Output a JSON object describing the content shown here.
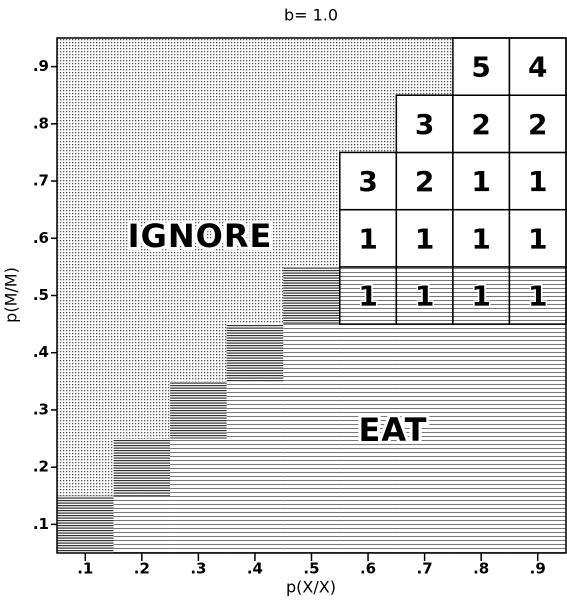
{
  "chart_data": {
    "type": "grid",
    "title": "b= 1.0",
    "xlabel": "p(X/X)",
    "ylabel": "p(M/M)",
    "xlim": [
      0.05,
      0.95
    ],
    "ylim": [
      0.05,
      0.95
    ],
    "xticks": [
      {
        "value": 0.1,
        "label": ".1"
      },
      {
        "value": 0.2,
        "label": ".2"
      },
      {
        "value": 0.3,
        "label": ".3"
      },
      {
        "value": 0.4,
        "label": ".4"
      },
      {
        "value": 0.5,
        "label": ".5"
      },
      {
        "value": 0.6,
        "label": ".6"
      },
      {
        "value": 0.7,
        "label": ".7"
      },
      {
        "value": 0.8,
        "label": ".8"
      },
      {
        "value": 0.9,
        "label": ".9"
      }
    ],
    "yticks": [
      {
        "value": 0.1,
        "label": ".1"
      },
      {
        "value": 0.2,
        "label": ".2"
      },
      {
        "value": 0.3,
        "label": ".3"
      },
      {
        "value": 0.4,
        "label": ".4"
      },
      {
        "value": 0.5,
        "label": ".5"
      },
      {
        "value": 0.6,
        "label": ".6"
      },
      {
        "value": 0.7,
        "label": ".7"
      },
      {
        "value": 0.8,
        "label": ".8"
      },
      {
        "value": 0.9,
        "label": ".9"
      }
    ],
    "regions": [
      "IGNORE",
      "EAT"
    ],
    "transition_cells": [
      {
        "x": 0.1,
        "y": 0.1
      },
      {
        "x": 0.2,
        "y": 0.2
      },
      {
        "x": 0.3,
        "y": 0.3
      },
      {
        "x": 0.4,
        "y": 0.4
      },
      {
        "x": 0.5,
        "y": 0.5
      }
    ],
    "cells": [
      {
        "x": 0.6,
        "y": 0.5,
        "value": 1,
        "hatched": true
      },
      {
        "x": 0.6,
        "y": 0.6,
        "value": 1
      },
      {
        "x": 0.6,
        "y": 0.7,
        "value": 3
      },
      {
        "x": 0.7,
        "y": 0.5,
        "value": 1,
        "hatched": true
      },
      {
        "x": 0.7,
        "y": 0.6,
        "value": 1
      },
      {
        "x": 0.7,
        "y": 0.7,
        "value": 2
      },
      {
        "x": 0.7,
        "y": 0.8,
        "value": 3
      },
      {
        "x": 0.8,
        "y": 0.5,
        "value": 1,
        "hatched": true
      },
      {
        "x": 0.8,
        "y": 0.6,
        "value": 1
      },
      {
        "x": 0.8,
        "y": 0.7,
        "value": 1
      },
      {
        "x": 0.8,
        "y": 0.8,
        "value": 2
      },
      {
        "x": 0.8,
        "y": 0.9,
        "value": 5
      },
      {
        "x": 0.9,
        "y": 0.5,
        "value": 1,
        "hatched": true
      },
      {
        "x": 0.9,
        "y": 0.6,
        "value": 1
      },
      {
        "x": 0.9,
        "y": 0.7,
        "value": 1
      },
      {
        "x": 0.9,
        "y": 0.8,
        "value": 2
      },
      {
        "x": 0.9,
        "y": 0.9,
        "value": 4
      }
    ]
  }
}
